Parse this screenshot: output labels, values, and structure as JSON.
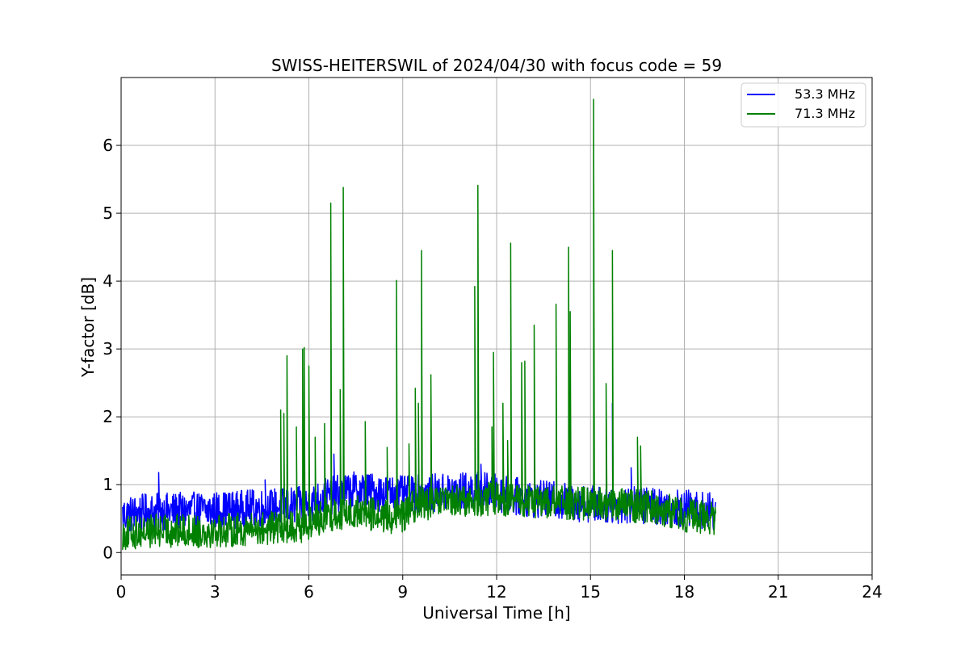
{
  "chart_data": {
    "type": "line",
    "title": "SWISS-HEITERSWIL of 2024/04/30 with focus code = 59",
    "xlabel": "Universal Time [h]",
    "ylabel": "Y-factor [dB]",
    "xlim": [
      0,
      24
    ],
    "ylim": [
      -0.33,
      7.0
    ],
    "xticks": [
      0,
      3,
      6,
      9,
      12,
      15,
      18,
      21,
      24
    ],
    "yticks": [
      0,
      1,
      2,
      3,
      4,
      5,
      6
    ],
    "grid": true,
    "legend_position": "top-right",
    "series": [
      {
        "name": "53.3 MHz",
        "color": "#0000ff",
        "baseline": [
          [
            0,
            0.55
          ],
          [
            1,
            0.6
          ],
          [
            3,
            0.62
          ],
          [
            4.5,
            0.66
          ],
          [
            6,
            0.7
          ],
          [
            6.5,
            0.82
          ],
          [
            7.5,
            0.92
          ],
          [
            9,
            0.85
          ],
          [
            10,
            0.88
          ],
          [
            11.5,
            0.92
          ],
          [
            13,
            0.8
          ],
          [
            15,
            0.72
          ],
          [
            16,
            0.7
          ],
          [
            17,
            0.7
          ],
          [
            18,
            0.65
          ],
          [
            19,
            0.6
          ]
        ],
        "noise": 0.28,
        "x_end": 19.0,
        "spikes": [
          [
            1.2,
            1.18
          ],
          [
            4.6,
            1.07
          ],
          [
            6.8,
            1.45
          ],
          [
            11.5,
            1.3
          ],
          [
            15.7,
            2.2
          ],
          [
            16.3,
            1.25
          ]
        ]
      },
      {
        "name": "71.3 MHz",
        "color": "#008000",
        "baseline": [
          [
            0,
            0.28
          ],
          [
            1,
            0.32
          ],
          [
            3,
            0.32
          ],
          [
            4.5,
            0.35
          ],
          [
            6,
            0.4
          ],
          [
            6.5,
            0.55
          ],
          [
            7.5,
            0.6
          ],
          [
            8.5,
            0.52
          ],
          [
            9,
            0.55
          ],
          [
            9.5,
            0.72
          ],
          [
            11,
            0.75
          ],
          [
            12,
            0.8
          ],
          [
            13,
            0.75
          ],
          [
            15,
            0.72
          ],
          [
            17,
            0.68
          ],
          [
            18,
            0.55
          ],
          [
            19,
            0.5
          ]
        ],
        "noise": 0.25,
        "x_end": 19.0,
        "spikes": [
          [
            5.1,
            2.1
          ],
          [
            5.2,
            2.05
          ],
          [
            5.3,
            2.9
          ],
          [
            5.6,
            1.85
          ],
          [
            5.8,
            3.0
          ],
          [
            5.85,
            3.02
          ],
          [
            6.0,
            2.75
          ],
          [
            6.2,
            1.7
          ],
          [
            6.5,
            1.9
          ],
          [
            6.7,
            5.15
          ],
          [
            7.0,
            2.4
          ],
          [
            7.1,
            5.38
          ],
          [
            7.8,
            1.93
          ],
          [
            8.5,
            1.55
          ],
          [
            8.8,
            4.01
          ],
          [
            9.2,
            1.6
          ],
          [
            9.4,
            2.42
          ],
          [
            9.5,
            2.2
          ],
          [
            9.6,
            4.45
          ],
          [
            9.9,
            2.62
          ],
          [
            11.3,
            3.92
          ],
          [
            11.4,
            5.41
          ],
          [
            11.9,
            2.95
          ],
          [
            11.85,
            1.85
          ],
          [
            12.2,
            2.2
          ],
          [
            12.35,
            1.65
          ],
          [
            12.45,
            4.56
          ],
          [
            12.8,
            2.8
          ],
          [
            12.9,
            2.82
          ],
          [
            13.2,
            3.35
          ],
          [
            13.9,
            3.66
          ],
          [
            14.3,
            4.5
          ],
          [
            14.35,
            3.55
          ],
          [
            15.1,
            6.68
          ],
          [
            15.5,
            2.49
          ],
          [
            15.7,
            4.45
          ],
          [
            16.5,
            1.7
          ],
          [
            16.6,
            1.57
          ]
        ]
      }
    ]
  }
}
